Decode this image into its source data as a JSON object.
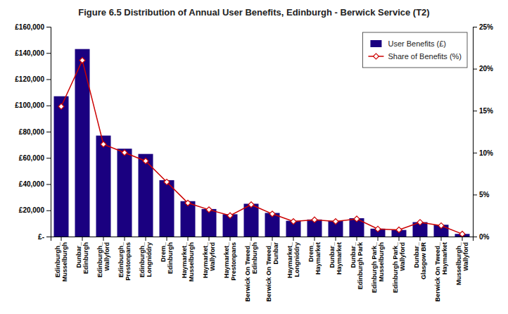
{
  "chart_data": {
    "type": "bar",
    "title": "Figure 6.5 Distribution of Annual User Benefits, Edinburgh - Berwick Service (T2)",
    "categories": [
      "Edinburgh_\nMusselburgh",
      "Dunbar_\nEdinburgh",
      "Edinburgh_\nWallyford",
      "Edinburgh_\nPrestonpans",
      "Edinburgh_\nLongniddry",
      "Drem_\nEdinburgh",
      "Haymarket_\nMusselburgh",
      "Haymarket_\nWallyford",
      "Haymarket_\nPrestonpans",
      "Berwick On Tweed_\nEdinburgh",
      "Berwick On Tweed_\nDunbar",
      "Haymarket_\nLongniddry",
      "Drem_\nHaymarket",
      "Dunbar_\nHaymarket",
      "Dunbar_\nEdinburgh Park",
      "Edinburgh Park_\nMusselburgh",
      "Edinburgh Park_\nWallyford",
      "Dunbar_\nGlasgow BR",
      "Berwick On Tweed_\nHaymarket",
      "Musselburgh_\nWallyford"
    ],
    "series": [
      {
        "name": "User Benefits (£)",
        "type": "bar",
        "color": "#1a0080",
        "values": [
          107000,
          143000,
          77000,
          67000,
          63000,
          43000,
          27000,
          21000,
          17000,
          25000,
          18000,
          12000,
          13000,
          12000,
          14000,
          6000,
          5000,
          11000,
          9000,
          2000
        ]
      },
      {
        "name": "Share of Benefits (%)",
        "type": "line",
        "color": "#cc0000",
        "marker": "diamond",
        "axis": "y2",
        "values": [
          15.5,
          21.0,
          11.0,
          10.0,
          9.0,
          6.5,
          4.0,
          3.2,
          2.5,
          3.8,
          2.7,
          1.8,
          2.0,
          1.8,
          2.1,
          0.9,
          0.8,
          1.7,
          1.3,
          0.3
        ]
      }
    ],
    "ylim": [
      0,
      160000
    ],
    "yticks": [
      {
        "value": 0,
        "label": "£-"
      },
      {
        "value": 20000,
        "label": "£20,000"
      },
      {
        "value": 40000,
        "label": "£40,000"
      },
      {
        "value": 60000,
        "label": "£60,000"
      },
      {
        "value": 80000,
        "label": "£80,000"
      },
      {
        "value": 100000,
        "label": "£100,000"
      },
      {
        "value": 120000,
        "label": "£120,000"
      },
      {
        "value": 140000,
        "label": "£140,000"
      },
      {
        "value": 160000,
        "label": "£160,000"
      }
    ],
    "y2lim": [
      0,
      25
    ],
    "y2ticks": [
      {
        "value": 0,
        "label": "0%"
      },
      {
        "value": 5,
        "label": "5%"
      },
      {
        "value": 10,
        "label": "10%"
      },
      {
        "value": 15,
        "label": "15%"
      },
      {
        "value": 20,
        "label": "20%"
      },
      {
        "value": 25,
        "label": "25%"
      }
    ],
    "legend": "upper right",
    "grid": false
  }
}
